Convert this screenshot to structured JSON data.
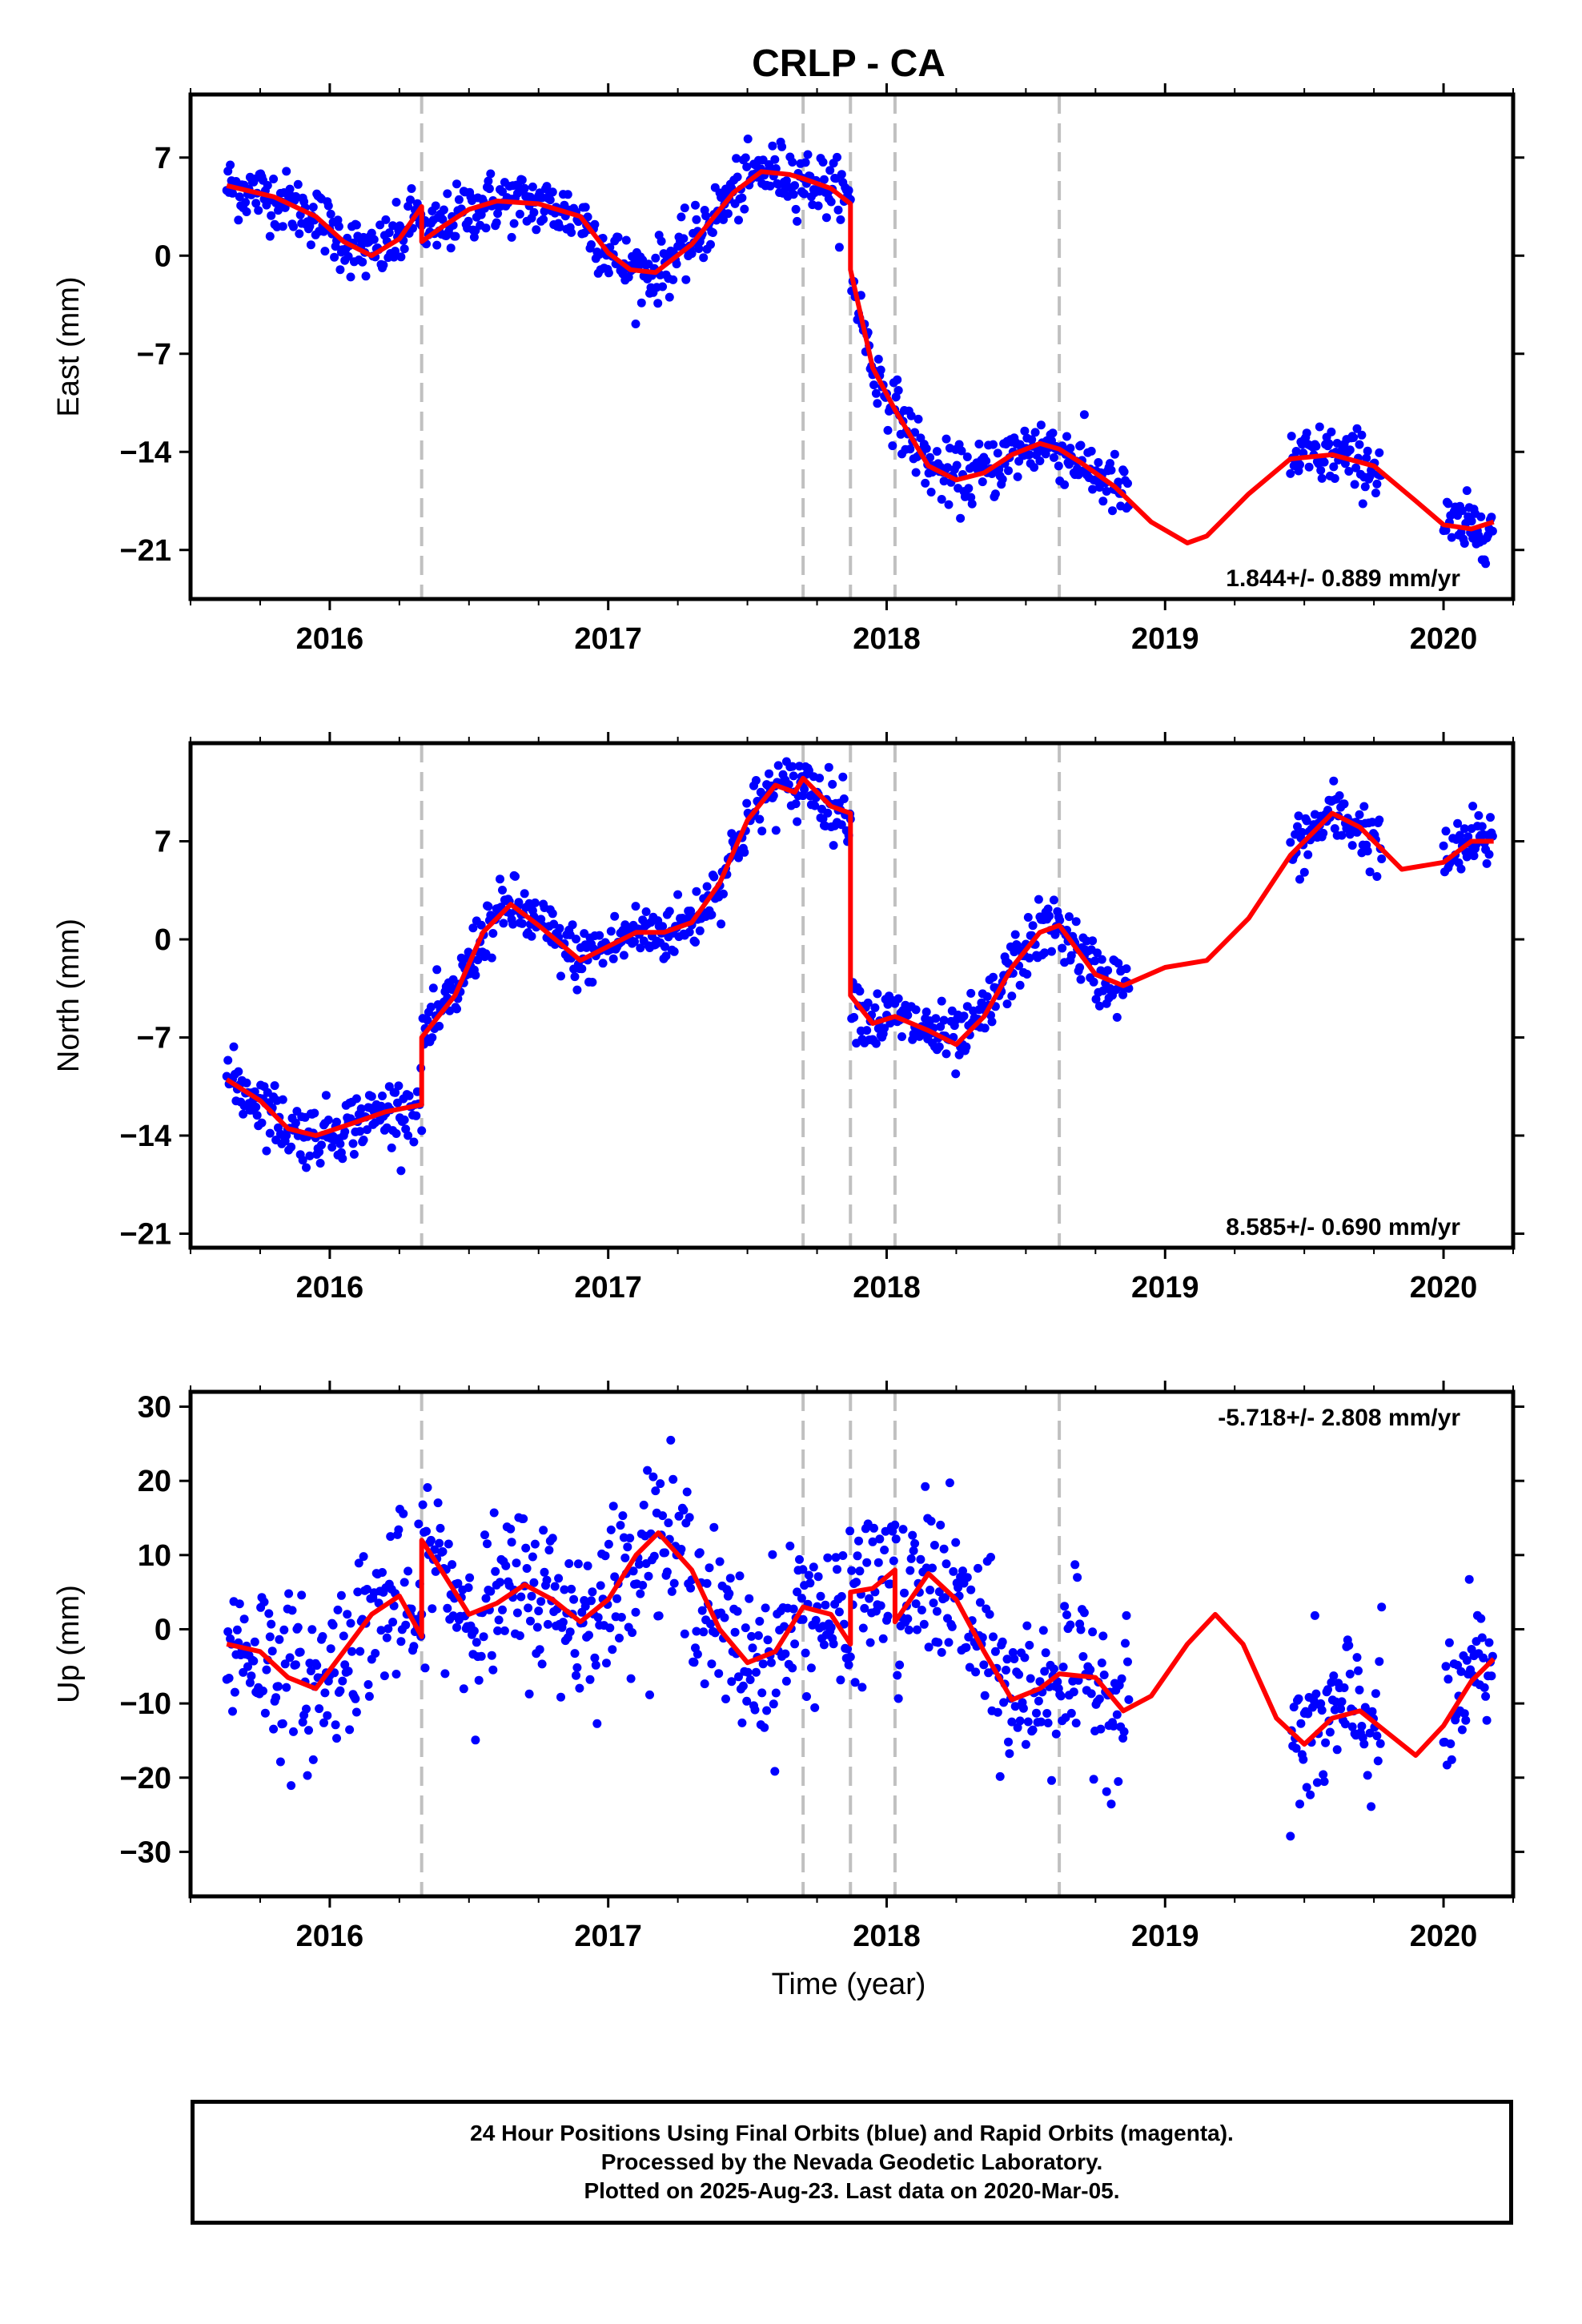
{
  "title": "CRLP - CA",
  "x_label": "Time (year)",
  "caption": {
    "line1": "24 Hour Positions Using Final Orbits (blue) and Rapid Orbits (magenta).",
    "line2": "Processed by the Nevada Geodetic Laboratory.",
    "line3": "Plotted on 2025-Aug-23. Last data on 2020-Mar-05."
  },
  "colors": {
    "points": "#0000ff",
    "model": "#ff0000",
    "breaks": "#c0c0c0",
    "axes": "#000000"
  },
  "chart_data": [
    {
      "type": "scatter",
      "ylabel": "East (mm)",
      "rate_label": "1.844+/- 0.889 mm/yr",
      "xlim": [
        2015.5,
        2020.25
      ],
      "ylim": [
        -24.5,
        11.5
      ],
      "x_ticks": [
        2016,
        2017,
        2018,
        2019,
        2020
      ],
      "x_tick_labels": [
        "2016",
        "2017",
        "2018",
        "2019",
        "2020"
      ],
      "y_ticks": [
        7,
        0,
        -7,
        -14,
        -21
      ],
      "y_tick_labels": [
        "7",
        "0",
        "−7",
        "−14",
        "−21"
      ],
      "break_lines": [
        2016.33,
        2017.7,
        2017.87,
        2018.03,
        2018.62
      ],
      "data_segments": [
        [
          2015.63,
          2016.33
        ],
        [
          2016.33,
          2017.7
        ],
        [
          2017.7,
          2017.87
        ],
        [
          2017.87,
          2018.87
        ],
        [
          2019.45,
          2019.78
        ],
        [
          2020.0,
          2020.18
        ]
      ],
      "scatter_sd": 1.1,
      "model_line": [
        [
          2015.63,
          5.0
        ],
        [
          2015.8,
          4.2
        ],
        [
          2015.95,
          2.8
        ],
        [
          2016.05,
          1.0
        ],
        [
          2016.15,
          0.0
        ],
        [
          2016.25,
          1.2
        ],
        [
          2016.33,
          3.5
        ],
        [
          2016.33,
          1.0
        ],
        [
          2016.4,
          2.0
        ],
        [
          2016.5,
          3.3
        ],
        [
          2016.6,
          3.9
        ],
        [
          2016.75,
          3.7
        ],
        [
          2016.9,
          2.8
        ],
        [
          2017.0,
          0.2
        ],
        [
          2017.08,
          -1.0
        ],
        [
          2017.17,
          -1.2
        ],
        [
          2017.3,
          0.8
        ],
        [
          2017.45,
          4.5
        ],
        [
          2017.55,
          6.0
        ],
        [
          2017.65,
          5.8
        ],
        [
          2017.7,
          5.5
        ],
        [
          2017.8,
          4.8
        ],
        [
          2017.87,
          3.7
        ],
        [
          2017.87,
          -1.0
        ],
        [
          2017.95,
          -8.0
        ],
        [
          2018.03,
          -11.0
        ],
        [
          2018.15,
          -15.0
        ],
        [
          2018.25,
          -16.0
        ],
        [
          2018.35,
          -15.5
        ],
        [
          2018.45,
          -14.2
        ],
        [
          2018.55,
          -13.4
        ],
        [
          2018.62,
          -13.8
        ],
        [
          2018.7,
          -14.8
        ],
        [
          2018.82,
          -16.5
        ],
        [
          2018.95,
          -19.0
        ],
        [
          2019.08,
          -20.5
        ],
        [
          2019.15,
          -20.0
        ],
        [
          2019.3,
          -17.0
        ],
        [
          2019.45,
          -14.5
        ],
        [
          2019.6,
          -14.2
        ],
        [
          2019.75,
          -15.0
        ],
        [
          2019.9,
          -17.5
        ],
        [
          2020.0,
          -19.2
        ],
        [
          2020.1,
          -19.5
        ],
        [
          2020.18,
          -19.0
        ]
      ]
    },
    {
      "type": "scatter",
      "ylabel": "North (mm)",
      "rate_label": "8.585+/- 0.690 mm/yr",
      "xlim": [
        2015.5,
        2020.25
      ],
      "ylim": [
        -22,
        14
      ],
      "x_ticks": [
        2016,
        2017,
        2018,
        2019,
        2020
      ],
      "x_tick_labels": [
        "2016",
        "2017",
        "2018",
        "2019",
        "2020"
      ],
      "y_ticks": [
        7,
        0,
        -7,
        -14,
        -21
      ],
      "y_tick_labels": [
        "7",
        "0",
        "−7",
        "−14",
        "−21"
      ],
      "break_lines": [
        2016.33,
        2017.7,
        2017.87,
        2018.03,
        2018.62
      ],
      "data_segments": [
        [
          2015.63,
          2016.33
        ],
        [
          2016.33,
          2017.7
        ],
        [
          2017.7,
          2017.87
        ],
        [
          2017.87,
          2018.87
        ],
        [
          2019.45,
          2019.78
        ],
        [
          2020.0,
          2020.18
        ]
      ],
      "scatter_sd": 1.1,
      "model_line": [
        [
          2015.63,
          -10.0
        ],
        [
          2015.75,
          -11.5
        ],
        [
          2015.85,
          -13.5
        ],
        [
          2015.95,
          -14.0
        ],
        [
          2016.1,
          -13.0
        ],
        [
          2016.2,
          -12.3
        ],
        [
          2016.33,
          -11.8
        ],
        [
          2016.33,
          -7.0
        ],
        [
          2016.45,
          -4.0
        ],
        [
          2016.55,
          0.5
        ],
        [
          2016.65,
          2.5
        ],
        [
          2016.75,
          1.0
        ],
        [
          2016.9,
          -1.5
        ],
        [
          2017.0,
          -0.5
        ],
        [
          2017.1,
          0.5
        ],
        [
          2017.2,
          0.5
        ],
        [
          2017.3,
          1.2
        ],
        [
          2017.4,
          4.0
        ],
        [
          2017.5,
          8.5
        ],
        [
          2017.6,
          11.0
        ],
        [
          2017.67,
          10.5
        ],
        [
          2017.7,
          11.5
        ],
        [
          2017.8,
          9.5
        ],
        [
          2017.87,
          9.0
        ],
        [
          2017.87,
          -4.0
        ],
        [
          2017.95,
          -6.0
        ],
        [
          2018.03,
          -5.5
        ],
        [
          2018.15,
          -6.5
        ],
        [
          2018.25,
          -7.5
        ],
        [
          2018.35,
          -5.5
        ],
        [
          2018.45,
          -2.0
        ],
        [
          2018.55,
          0.5
        ],
        [
          2018.62,
          1.0
        ],
        [
          2018.75,
          -2.5
        ],
        [
          2018.85,
          -3.3
        ],
        [
          2019.0,
          -2.0
        ],
        [
          2019.15,
          -1.5
        ],
        [
          2019.3,
          1.5
        ],
        [
          2019.45,
          6.0
        ],
        [
          2019.6,
          9.0
        ],
        [
          2019.7,
          8.0
        ],
        [
          2019.85,
          5.0
        ],
        [
          2020.0,
          5.5
        ],
        [
          2020.1,
          7.0
        ],
        [
          2020.18,
          7.0
        ]
      ]
    },
    {
      "type": "scatter",
      "ylabel": "Up (mm)",
      "rate_label": "-5.718+/- 2.808 mm/yr",
      "xlim": [
        2015.5,
        2020.25
      ],
      "ylim": [
        -36,
        32
      ],
      "x_ticks": [
        2016,
        2017,
        2018,
        2019,
        2020
      ],
      "x_tick_labels": [
        "2016",
        "2017",
        "2018",
        "2019",
        "2020"
      ],
      "y_ticks": [
        30,
        20,
        10,
        0,
        -10,
        -20,
        -30
      ],
      "y_tick_labels": [
        "30",
        "20",
        "10",
        "0",
        "−10",
        "−20",
        "−30"
      ],
      "break_lines": [
        2016.33,
        2017.7,
        2017.87,
        2018.03,
        2018.62
      ],
      "data_segments": [
        [
          2015.63,
          2016.33
        ],
        [
          2016.33,
          2017.7
        ],
        [
          2017.7,
          2017.87
        ],
        [
          2017.87,
          2018.87
        ],
        [
          2019.45,
          2019.78
        ],
        [
          2020.0,
          2020.18
        ]
      ],
      "scatter_sd": 5.5,
      "model_line": [
        [
          2015.63,
          -2.0
        ],
        [
          2015.75,
          -3.0
        ],
        [
          2015.85,
          -6.5
        ],
        [
          2015.95,
          -8.0
        ],
        [
          2016.05,
          -3.0
        ],
        [
          2016.15,
          2.0
        ],
        [
          2016.25,
          4.5
        ],
        [
          2016.33,
          -1.0
        ],
        [
          2016.33,
          12.0
        ],
        [
          2016.4,
          8.0
        ],
        [
          2016.5,
          2.0
        ],
        [
          2016.6,
          3.5
        ],
        [
          2016.7,
          6.0
        ],
        [
          2016.8,
          4.0
        ],
        [
          2016.9,
          1.0
        ],
        [
          2017.0,
          4.0
        ],
        [
          2017.1,
          10.0
        ],
        [
          2017.18,
          13.0
        ],
        [
          2017.3,
          8.0
        ],
        [
          2017.4,
          0.0
        ],
        [
          2017.5,
          -4.5
        ],
        [
          2017.6,
          -3.0
        ],
        [
          2017.7,
          3.0
        ],
        [
          2017.8,
          2.0
        ],
        [
          2017.87,
          -2.0
        ],
        [
          2017.87,
          5.0
        ],
        [
          2017.95,
          5.5
        ],
        [
          2018.03,
          8.0
        ],
        [
          2018.03,
          1.0
        ],
        [
          2018.15,
          7.5
        ],
        [
          2018.25,
          4.0
        ],
        [
          2018.35,
          -3.0
        ],
        [
          2018.45,
          -9.5
        ],
        [
          2018.55,
          -8.0
        ],
        [
          2018.62,
          -6.0
        ],
        [
          2018.75,
          -6.5
        ],
        [
          2018.85,
          -11.0
        ],
        [
          2018.95,
          -9.0
        ],
        [
          2019.08,
          -2.0
        ],
        [
          2019.18,
          2.0
        ],
        [
          2019.28,
          -2.0
        ],
        [
          2019.4,
          -12.0
        ],
        [
          2019.5,
          -15.5
        ],
        [
          2019.6,
          -12.0
        ],
        [
          2019.7,
          -11.0
        ],
        [
          2019.8,
          -14.0
        ],
        [
          2019.9,
          -17.0
        ],
        [
          2020.0,
          -13.0
        ],
        [
          2020.1,
          -7.0
        ],
        [
          2020.18,
          -4.0
        ]
      ]
    }
  ]
}
